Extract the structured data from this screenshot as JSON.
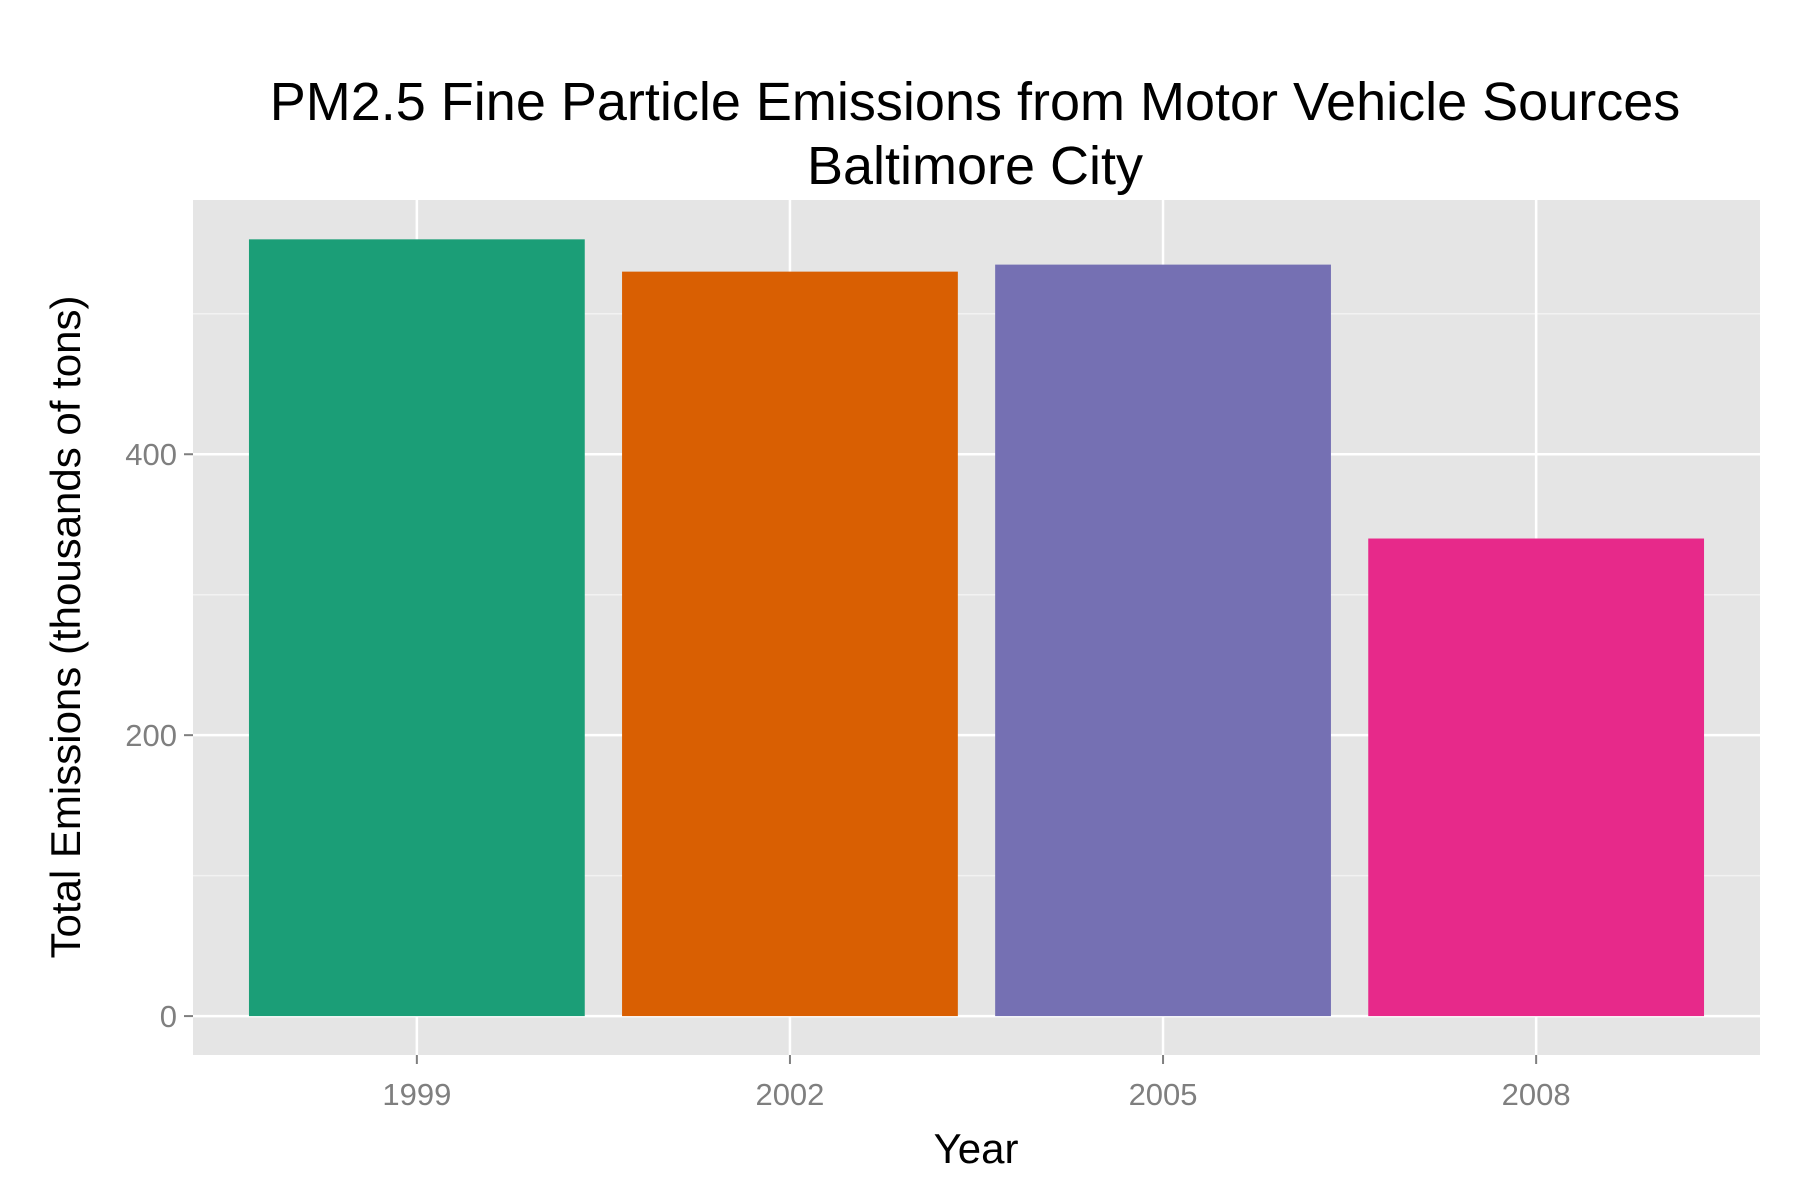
{
  "chart_data": {
    "type": "bar",
    "title": [
      "PM2.5 Fine Particle Emissions from Motor Vehicle Sources",
      "Baltimore City"
    ],
    "xlabel": "Year",
    "ylabel": "Total Emissions (thousands of tons)",
    "categories": [
      "1999",
      "2002",
      "2005",
      "2008"
    ],
    "values": [
      553,
      530,
      535,
      340
    ],
    "ylim": [
      -27.7,
      581
    ],
    "yticks": [
      0,
      200,
      400
    ],
    "grid": true,
    "legend": "none",
    "colors": {
      "bars": [
        "#1b9e77",
        "#d95f02",
        "#7570b3",
        "#e7298a"
      ],
      "panel": "#e5e5e5",
      "grid_major": "#ffffff",
      "grid_minor": "#f2f2f2",
      "tick_text": "#7f7f7f"
    }
  }
}
